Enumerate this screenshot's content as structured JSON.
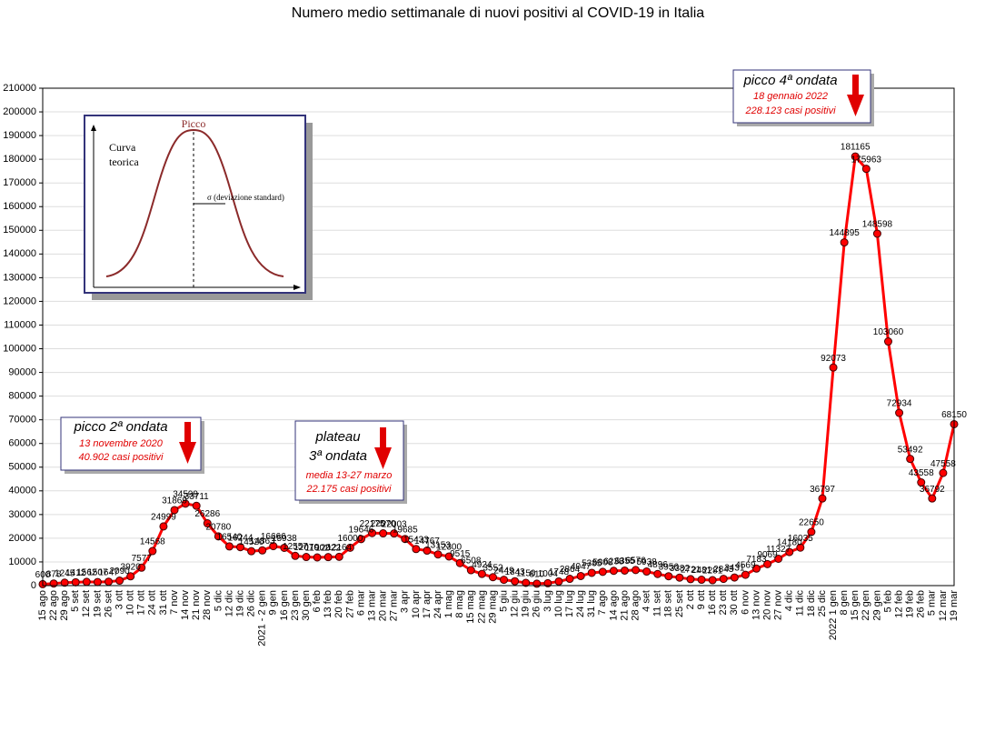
{
  "chart_data": {
    "type": "line",
    "title": "Numero medio settimanale di nuovi positivi al COVID-19 in Italia",
    "categories": [
      "15 ago",
      "22 ago",
      "29 ago",
      "5 set",
      "12 set",
      "19 set",
      "26 set",
      "3 ott",
      "10 ott",
      "17 ott",
      "24 ott",
      "31 ott",
      "7 nov",
      "14 nov",
      "21 nov",
      "28 nov",
      "5 dic",
      "12 dic",
      "19 dic",
      "26 dic",
      "2021 - 2 gen",
      "9 gen",
      "16 gen",
      "23 gen",
      "30 gen",
      "6 feb",
      "13 feb",
      "20 feb",
      "27 feb",
      "6 mar",
      "13 mar",
      "20 mar",
      "27 mar",
      "3 apr",
      "10 apr",
      "17 apr",
      "24 apr",
      "1 mag",
      "8 mag",
      "15 mag",
      "22 mag",
      "29 mag",
      "5 giu",
      "12 giu",
      "19 giu",
      "26 giu",
      "3 lug",
      "10 lug",
      "17 lug",
      "24 lug",
      "31 lug",
      "7 ago",
      "14 ago",
      "21 ago",
      "28 ago",
      "4 set",
      "11 set",
      "18 set",
      "25 set",
      "2 ott",
      "9 ott",
      "16 ott",
      "23 ott",
      "30 ott",
      "6 nov",
      "13 nov",
      "20 nov",
      "27 nov",
      "4 dic",
      "11 dic",
      "18 dic",
      "25 dic",
      "2022 1 gen",
      "8 gen",
      "15 gen",
      "22 gen",
      "29 gen",
      "5 feb",
      "12 feb",
      "19 feb",
      "26 feb",
      "5 mar",
      "12 mar",
      "19 mar"
    ],
    "series": [
      {
        "name": "nuovi positivi",
        "color": "#ff0000",
        "values": [
          600,
          878,
          1245,
          1412,
          1562,
          1507,
          1647,
          2090,
          3920,
          7577,
          14568,
          24999,
          31869,
          34599,
          33711,
          26286,
          20780,
          16540,
          16244,
          14520,
          14863,
          16666,
          15938,
          12557,
          12070,
          11902,
          12022,
          12164,
          16000,
          19646,
          22175,
          22070,
          22003,
          19685,
          15433,
          14767,
          13153,
          12300,
          9515,
          6508,
          4924,
          3552,
          2449,
          1843,
          1150,
          810,
          1004,
          1748,
          2864,
          4047,
          5385,
          5808,
          6238,
          6355,
          6576,
          5938,
          4896,
          3956,
          3382,
          2721,
          2481,
          2281,
          2843,
          3431,
          4569,
          7183,
          9069,
          11327,
          14180,
          16035,
          22650,
          36797,
          92073,
          144895,
          181165,
          175963,
          148598,
          103060,
          72934,
          53492,
          43558,
          36792,
          47558,
          68150
        ]
      }
    ],
    "ylim": [
      0,
      210000
    ],
    "yticks": [
      0,
      10000,
      20000,
      30000,
      40000,
      50000,
      60000,
      70000,
      80000,
      90000,
      100000,
      110000,
      120000,
      130000,
      140000,
      150000,
      160000,
      170000,
      180000,
      190000,
      200000,
      210000
    ],
    "grid": true,
    "annotations": [
      {
        "title": "picco 2ª ondata",
        "lines": [
          "13 novembre 2020",
          "40.902 casi positivi"
        ]
      },
      {
        "title": "plateau",
        "subtitle": "3ª ondata",
        "lines": [
          "media 13-27 marzo",
          "22.175 casi positivi"
        ]
      },
      {
        "title": "picco 4ª ondata",
        "lines": [
          "18 gennaio 2022",
          "228.123 casi positivi"
        ]
      }
    ],
    "inset": {
      "title": "Picco",
      "label": [
        "Curva",
        "teorica"
      ],
      "sigma": "σ (deviazione standard)"
    }
  }
}
